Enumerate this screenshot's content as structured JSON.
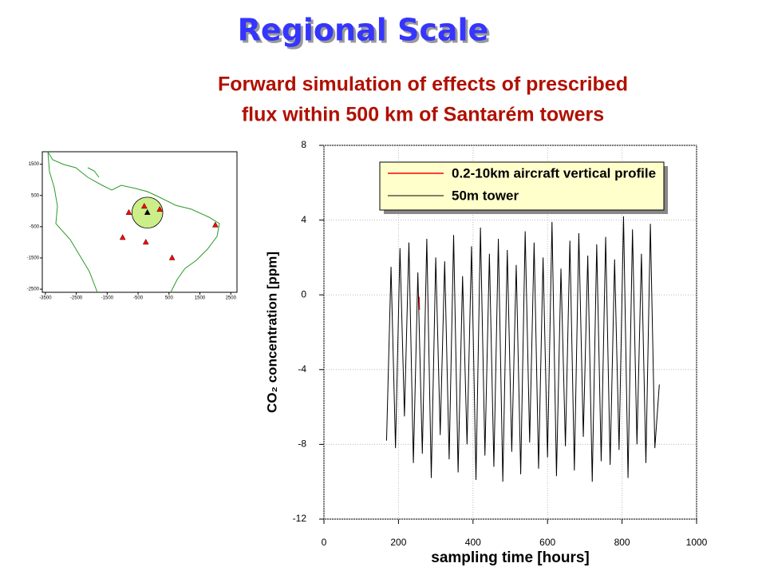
{
  "title": "Regional Scale",
  "subtitle": [
    "Forward simulation of effects of prescribed",
    "flux within 500 km of Santarém towers"
  ],
  "chart_data": [
    {
      "type": "scatter",
      "xlim": [
        -3600,
        2700
      ],
      "ylim": [
        -2600,
        1900
      ],
      "xticks": [
        -3500,
        -2500,
        -1500,
        -500,
        500,
        1500,
        2500
      ],
      "yticks": [
        1500,
        500,
        -500,
        -1500,
        -2500
      ],
      "circle": {
        "x": -200,
        "y": -50,
        "radius": 500,
        "color": "#ccee88"
      },
      "series": [
        {
          "color": "#ff0000",
          "x": [
            -800,
            -300,
            200,
            2000,
            -1000,
            -250,
            600
          ],
          "values": [
            -50,
            150,
            50,
            -450,
            -850,
            -1000,
            -1500
          ]
        },
        {
          "color": "#000000",
          "x": [
            -200
          ],
          "values": [
            -50
          ]
        }
      ]
    },
    {
      "type": "line",
      "xlabel": "sampling time [hours]",
      "ylabel": "CO₂ concentration [ppm]",
      "xlim": [
        0,
        1000
      ],
      "ylim": [
        -12,
        8
      ],
      "xticks": [
        0,
        200,
        400,
        600,
        800,
        1000
      ],
      "yticks": [
        -12,
        -8,
        -4,
        0,
        4,
        8
      ],
      "grid": true,
      "legend": "upper right",
      "series": [
        {
          "name": "0.2-10km aircraft vertical profile",
          "color": "#ff0000",
          "x": [
            255,
            256
          ],
          "values": [
            -0.1,
            -0.8
          ]
        },
        {
          "name": "50m tower",
          "color": "#000000",
          "x": [
            168,
            180,
            192,
            204,
            216,
            228,
            240,
            252,
            264,
            276,
            288,
            300,
            312,
            324,
            336,
            348,
            360,
            372,
            384,
            396,
            408,
            420,
            432,
            444,
            456,
            468,
            480,
            492,
            504,
            516,
            528,
            540,
            552,
            564,
            576,
            588,
            600,
            612,
            624,
            636,
            648,
            660,
            672,
            684,
            696,
            708,
            720,
            732,
            744,
            756,
            768,
            780,
            792,
            804,
            816,
            828,
            840,
            852,
            864,
            876,
            888,
            900
          ],
          "values": [
            -7.8,
            1.5,
            -8.2,
            2.5,
            -6.5,
            2.8,
            -9.0,
            1.2,
            -8.5,
            3.0,
            -9.8,
            2.0,
            -7.5,
            1.8,
            -8.8,
            3.2,
            -9.5,
            1.0,
            -8.0,
            2.6,
            -9.9,
            3.6,
            -8.6,
            2.2,
            -9.2,
            3.0,
            -10.0,
            2.4,
            -8.4,
            1.6,
            -9.6,
            3.4,
            -7.9,
            2.8,
            -9.3,
            2.0,
            -8.7,
            3.9,
            -9.7,
            1.4,
            -8.1,
            2.9,
            -9.4,
            3.3,
            -7.6,
            2.1,
            -10.0,
            2.7,
            -8.9,
            3.1,
            -9.1,
            1.9,
            -8.3,
            4.2,
            -9.8,
            3.5,
            -8.0,
            2.2,
            -9.0,
            3.8,
            -8.2,
            -4.8
          ]
        }
      ]
    }
  ]
}
